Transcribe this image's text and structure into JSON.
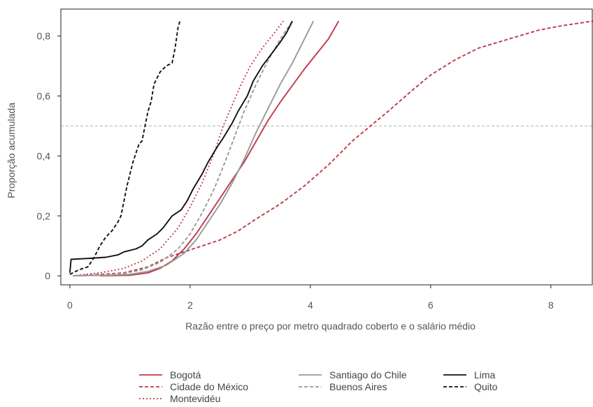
{
  "chart_data": {
    "type": "line",
    "title": "",
    "xlabel": "Razão entre o preço por metro quadrado coberto e o salário médio",
    "ylabel": "Proporção acumulada",
    "xlim": [
      -0.15,
      8.7
    ],
    "ylim": [
      -0.03,
      0.89
    ],
    "x_ticks": [
      {
        "value": 0,
        "label": "0"
      },
      {
        "value": 2,
        "label": "2"
      },
      {
        "value": 4,
        "label": "4"
      },
      {
        "value": 6,
        "label": "6"
      },
      {
        "value": 8,
        "label": "8"
      }
    ],
    "y_ticks": [
      {
        "value": 0,
        "label": "0"
      },
      {
        "value": 0.2,
        "label": "0,2"
      },
      {
        "value": 0.4,
        "label": "0,4"
      },
      {
        "value": 0.6,
        "label": "0,6"
      },
      {
        "value": 0.8,
        "label": "0,8"
      }
    ],
    "reference_line": {
      "y": 0.5,
      "color": "#bbbbbb",
      "style": "dashed"
    },
    "grid": false,
    "legend_position": "bottom",
    "series": [
      {
        "name": "Bogotá",
        "color": "#c0394b",
        "dash": "solid",
        "points": [
          [
            0.5,
            0
          ],
          [
            1.0,
            0.002
          ],
          [
            1.3,
            0.01
          ],
          [
            1.5,
            0.025
          ],
          [
            1.7,
            0.05
          ],
          [
            1.9,
            0.09
          ],
          [
            2.1,
            0.14
          ],
          [
            2.3,
            0.2
          ],
          [
            2.5,
            0.26
          ],
          [
            2.7,
            0.32
          ],
          [
            2.9,
            0.38
          ],
          [
            3.1,
            0.45
          ],
          [
            3.3,
            0.52
          ],
          [
            3.5,
            0.58
          ],
          [
            3.7,
            0.635
          ],
          [
            3.9,
            0.69
          ],
          [
            4.1,
            0.74
          ],
          [
            4.3,
            0.79
          ],
          [
            4.47,
            0.85
          ]
        ]
      },
      {
        "name": "Cidade do México",
        "color": "#c0394b",
        "dash": "dashed",
        "points": [
          [
            0.05,
            0
          ],
          [
            0.5,
            0.005
          ],
          [
            0.9,
            0.01
          ],
          [
            1.3,
            0.03
          ],
          [
            1.6,
            0.06
          ],
          [
            1.9,
            0.08
          ],
          [
            2.2,
            0.1
          ],
          [
            2.5,
            0.12
          ],
          [
            2.8,
            0.15
          ],
          [
            3.1,
            0.19
          ],
          [
            3.5,
            0.24
          ],
          [
            3.9,
            0.3
          ],
          [
            4.3,
            0.37
          ],
          [
            4.7,
            0.45
          ],
          [
            5.0,
            0.5
          ],
          [
            5.3,
            0.55
          ],
          [
            5.7,
            0.62
          ],
          [
            6.0,
            0.67
          ],
          [
            6.4,
            0.72
          ],
          [
            6.8,
            0.76
          ],
          [
            7.3,
            0.79
          ],
          [
            7.8,
            0.82
          ],
          [
            8.2,
            0.835
          ],
          [
            8.7,
            0.85
          ]
        ]
      },
      {
        "name": "Montevidéu",
        "color": "#c0394b",
        "dash": "dotted",
        "points": [
          [
            0.05,
            0
          ],
          [
            0.5,
            0.01
          ],
          [
            0.9,
            0.025
          ],
          [
            1.2,
            0.05
          ],
          [
            1.5,
            0.09
          ],
          [
            1.8,
            0.16
          ],
          [
            2.0,
            0.23
          ],
          [
            2.2,
            0.31
          ],
          [
            2.4,
            0.41
          ],
          [
            2.55,
            0.5
          ],
          [
            2.7,
            0.57
          ],
          [
            2.85,
            0.64
          ],
          [
            3.0,
            0.7
          ],
          [
            3.2,
            0.76
          ],
          [
            3.4,
            0.81
          ],
          [
            3.55,
            0.85
          ]
        ]
      },
      {
        "name": "Santiago do Chile",
        "color": "#999999",
        "dash": "solid",
        "points": [
          [
            0.05,
            0
          ],
          [
            0.6,
            0.002
          ],
          [
            1.0,
            0.005
          ],
          [
            1.3,
            0.015
          ],
          [
            1.6,
            0.035
          ],
          [
            1.9,
            0.075
          ],
          [
            2.1,
            0.12
          ],
          [
            2.3,
            0.18
          ],
          [
            2.5,
            0.24
          ],
          [
            2.7,
            0.31
          ],
          [
            2.9,
            0.39
          ],
          [
            3.1,
            0.48
          ],
          [
            3.3,
            0.56
          ],
          [
            3.5,
            0.64
          ],
          [
            3.7,
            0.71
          ],
          [
            3.9,
            0.79
          ],
          [
            4.05,
            0.85
          ]
        ]
      },
      {
        "name": "Buenos Aires",
        "color": "#999999",
        "dash": "dashed",
        "points": [
          [
            0.05,
            0
          ],
          [
            0.5,
            0.003
          ],
          [
            0.9,
            0.008
          ],
          [
            1.2,
            0.02
          ],
          [
            1.5,
            0.045
          ],
          [
            1.8,
            0.09
          ],
          [
            2.0,
            0.14
          ],
          [
            2.2,
            0.21
          ],
          [
            2.4,
            0.29
          ],
          [
            2.6,
            0.39
          ],
          [
            2.75,
            0.47
          ],
          [
            2.9,
            0.55
          ],
          [
            3.1,
            0.64
          ],
          [
            3.3,
            0.72
          ],
          [
            3.5,
            0.79
          ],
          [
            3.7,
            0.85
          ]
        ]
      },
      {
        "name": "Lima",
        "color": "#111111",
        "dash": "solid",
        "points": [
          [
            0.0,
            0.01
          ],
          [
            0.02,
            0.055
          ],
          [
            0.3,
            0.058
          ],
          [
            0.6,
            0.062
          ],
          [
            0.8,
            0.07
          ],
          [
            0.9,
            0.08
          ],
          [
            1.1,
            0.09
          ],
          [
            1.2,
            0.1
          ],
          [
            1.3,
            0.12
          ],
          [
            1.45,
            0.14
          ],
          [
            1.55,
            0.16
          ],
          [
            1.7,
            0.2
          ],
          [
            1.85,
            0.22
          ],
          [
            1.95,
            0.25
          ],
          [
            2.05,
            0.29
          ],
          [
            2.2,
            0.34
          ],
          [
            2.3,
            0.38
          ],
          [
            2.45,
            0.43
          ],
          [
            2.55,
            0.46
          ],
          [
            2.7,
            0.51
          ],
          [
            2.8,
            0.55
          ],
          [
            2.95,
            0.6
          ],
          [
            3.05,
            0.65
          ],
          [
            3.2,
            0.7
          ],
          [
            3.35,
            0.74
          ],
          [
            3.5,
            0.78
          ],
          [
            3.6,
            0.81
          ],
          [
            3.7,
            0.85
          ]
        ]
      },
      {
        "name": "Quito",
        "color": "#111111",
        "dash": "dashed",
        "points": [
          [
            0.0,
            0.005
          ],
          [
            0.15,
            0.02
          ],
          [
            0.3,
            0.03
          ],
          [
            0.4,
            0.06
          ],
          [
            0.5,
            0.1
          ],
          [
            0.6,
            0.13
          ],
          [
            0.7,
            0.15
          ],
          [
            0.8,
            0.18
          ],
          [
            0.85,
            0.2
          ],
          [
            0.9,
            0.25
          ],
          [
            0.95,
            0.3
          ],
          [
            1.0,
            0.34
          ],
          [
            1.05,
            0.38
          ],
          [
            1.1,
            0.41
          ],
          [
            1.15,
            0.44
          ],
          [
            1.2,
            0.45
          ],
          [
            1.25,
            0.5
          ],
          [
            1.3,
            0.55
          ],
          [
            1.35,
            0.58
          ],
          [
            1.4,
            0.64
          ],
          [
            1.5,
            0.68
          ],
          [
            1.6,
            0.7
          ],
          [
            1.7,
            0.71
          ],
          [
            1.75,
            0.76
          ],
          [
            1.8,
            0.83
          ],
          [
            1.83,
            0.85
          ]
        ]
      }
    ]
  }
}
